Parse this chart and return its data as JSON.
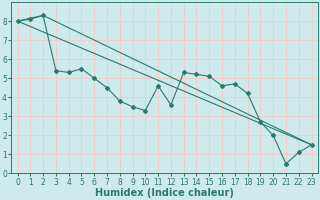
{
  "xlabel": "Humidex (Indice chaleur)",
  "ylabel": "",
  "background_color": "#ceeaea",
  "grid_color": "#f5c8c8",
  "line_color": "#2b7a6e",
  "xlim": [
    -0.5,
    23.5
  ],
  "ylim": [
    0,
    9
  ],
  "xtick_labels": [
    "0",
    "1",
    "2",
    "3",
    "4",
    "5",
    "6",
    "7",
    "8",
    "9",
    "10",
    "11",
    "12",
    "13",
    "14",
    "15",
    "16",
    "17",
    "18",
    "19",
    "20",
    "21",
    "22",
    "23"
  ],
  "yticks": [
    0,
    1,
    2,
    3,
    4,
    5,
    6,
    7,
    8
  ],
  "line1_x": [
    0,
    1,
    2,
    3,
    4,
    5,
    6,
    7,
    8,
    9,
    10,
    11,
    12,
    13,
    14,
    15,
    16,
    17,
    18,
    19,
    20,
    21,
    22,
    23
  ],
  "line1_y": [
    8.0,
    8.1,
    8.3,
    5.4,
    5.3,
    5.5,
    5.0,
    4.5,
    3.8,
    3.5,
    3.3,
    4.6,
    3.6,
    5.3,
    5.2,
    5.1,
    4.6,
    4.7,
    4.2,
    2.7,
    2.0,
    0.5,
    1.1,
    1.5
  ],
  "line2_x": [
    0,
    2,
    23
  ],
  "line2_y": [
    8.0,
    8.3,
    1.5
  ],
  "line3_x": [
    0,
    23
  ],
  "line3_y": [
    8.0,
    1.5
  ],
  "xlabel_fontsize": 7,
  "tick_fontsize": 5.5,
  "linewidth": 0.8,
  "markersize": 2.0
}
